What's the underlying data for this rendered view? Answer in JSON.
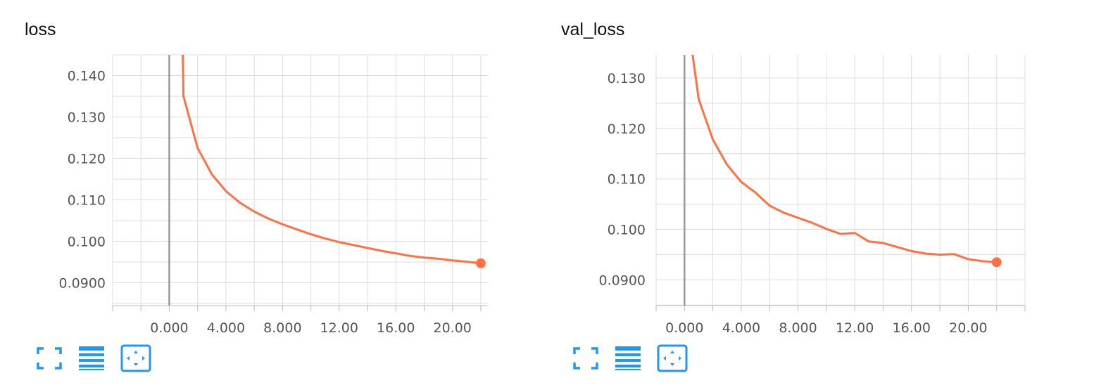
{
  "colors": {
    "accent": "#2196f3",
    "series": "#ff7043",
    "grid": "#dddddd",
    "zero_line": "#999999"
  },
  "toolbar_icons": [
    "fullscreen-icon",
    "toggle-log-scale-icon",
    "fit-domain-icon"
  ],
  "chart_data": [
    {
      "type": "line",
      "title": "loss",
      "xlim": [
        -4,
        22.5
      ],
      "ylim": [
        0.0845,
        0.145
      ],
      "x_ticks": [
        "0.000",
        "4.000",
        "8.000",
        "12.00",
        "16.00",
        "20.00"
      ],
      "x_tick_values": [
        0,
        4,
        8,
        12,
        16,
        20
      ],
      "y_ticks": [
        "0.0900",
        "0.100",
        "0.110",
        "0.120",
        "0.130",
        "0.140"
      ],
      "y_tick_values": [
        0.09,
        0.1,
        0.11,
        0.12,
        0.13,
        0.14
      ],
      "grid": true,
      "x": [
        0.9,
        1,
        2,
        3,
        4,
        5,
        6,
        7,
        8,
        9,
        10,
        11,
        12,
        13,
        14,
        15,
        16,
        17,
        18,
        19,
        20,
        21,
        22
      ],
      "y": [
        0.157,
        0.135,
        0.1225,
        0.1162,
        0.1121,
        0.1093,
        0.1072,
        0.1055,
        0.1041,
        0.1029,
        0.1017,
        0.1007,
        0.0998,
        0.0991,
        0.0984,
        0.0977,
        0.0971,
        0.0965,
        0.0961,
        0.0958,
        0.0954,
        0.0951,
        0.0947
      ]
    },
    {
      "type": "line",
      "title": "val_loss",
      "xlim": [
        -2,
        24
      ],
      "ylim": [
        0.0849,
        0.1346
      ],
      "x_ticks": [
        "0.000",
        "4.000",
        "8.000",
        "12.00",
        "16.00",
        "20.00"
      ],
      "x_tick_values": [
        0,
        4,
        8,
        12,
        16,
        20
      ],
      "y_ticks": [
        "0.0900",
        "0.100",
        "0.110",
        "0.120",
        "0.130"
      ],
      "y_tick_values": [
        0.09,
        0.1,
        0.11,
        0.12,
        0.13
      ],
      "grid": true,
      "x": [
        0.4,
        1,
        2,
        3,
        4,
        5,
        6,
        7,
        8,
        9,
        10,
        11,
        12,
        13,
        14,
        15,
        16,
        17,
        18,
        19,
        20,
        21,
        22
      ],
      "y": [
        0.138,
        0.1258,
        0.1178,
        0.1128,
        0.1094,
        0.1073,
        0.1047,
        0.1033,
        0.1023,
        0.1013,
        0.1001,
        0.0991,
        0.0993,
        0.0976,
        0.0973,
        0.0965,
        0.0957,
        0.0952,
        0.095,
        0.0951,
        0.0941,
        0.0937,
        0.0935
      ]
    }
  ]
}
